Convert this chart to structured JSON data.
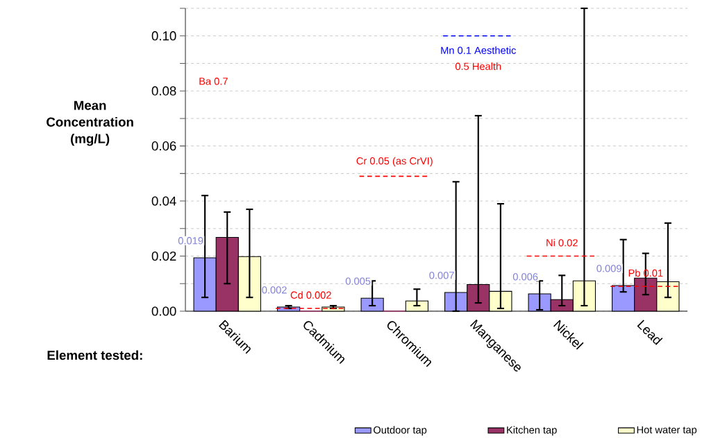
{
  "chart_data": {
    "type": "bar",
    "xlabel": "Element tested:",
    "ylabel": "Mean Concentration (mg/L)",
    "categories": [
      "Barium",
      "Cadmium",
      "Chromium",
      "Manganese",
      "Nickel",
      "Lead"
    ],
    "series": [
      {
        "name": "Outdoor tap",
        "color": "#9999ff",
        "values": [
          0.0194,
          0.0015,
          0.0047,
          0.0068,
          0.0063,
          0.0093
        ],
        "errors": [
          [
            0.005,
            0.042
          ],
          [
            0.001,
            0.002
          ],
          [
            0.002,
            0.011
          ],
          [
            0,
            0.047
          ],
          [
            0.0005,
            0.011
          ],
          [
            0.007,
            0.026
          ]
        ],
        "value_labels": [
          "0.019",
          "0.002",
          "0.005",
          "0.007",
          "0.006",
          "0.009"
        ]
      },
      {
        "name": "Kitchen tap",
        "color": "#993366",
        "values": [
          0.0268,
          0,
          0,
          0.0097,
          0.0042,
          0.012
        ],
        "errors": [
          [
            0.01,
            0.036
          ],
          null,
          null,
          [
            0.003,
            0.071
          ],
          [
            0.002,
            0.013
          ],
          [
            0.006,
            0.021
          ]
        ]
      },
      {
        "name": "Hot water tap",
        "color": "#ffffcc",
        "values": [
          0.0198,
          0.0015,
          0.0037,
          0.0072,
          0.011,
          0.0107
        ],
        "errors": [
          [
            0.005,
            0.037
          ],
          [
            0.001,
            0.002
          ],
          [
            0.002,
            0.008
          ],
          [
            0.001,
            0.039
          ],
          [
            0.002,
            0.11
          ],
          [
            0.005,
            0.032
          ]
        ]
      }
    ],
    "ylim": [
      0,
      0.11
    ],
    "yticks": [
      {
        "value": 0,
        "label": "0.00"
      },
      {
        "value": 0.01,
        "label": null
      },
      {
        "value": 0.02,
        "label": "0.02"
      },
      {
        "value": 0.03,
        "label": null
      },
      {
        "value": 0.04,
        "label": "0.04"
      },
      {
        "value": 0.05,
        "label": null
      },
      {
        "value": 0.06,
        "label": "0.06"
      },
      {
        "value": 0.07,
        "label": null
      },
      {
        "value": 0.08,
        "label": "0.08"
      },
      {
        "value": 0.09,
        "label": null
      },
      {
        "value": 0.1,
        "label": "0.10"
      },
      {
        "value": 0.11,
        "label": null
      }
    ],
    "grid": "y",
    "legend": "bottom",
    "ref_lines": [
      {
        "axis": "y",
        "value": 0.001,
        "label": "Cd 0.002",
        "color": "#ff0000",
        "line_style": "dashed"
      },
      {
        "axis": "y",
        "value": 0.049,
        "label": "Cr 0.05 (as CrVI)",
        "color": "#ff0000",
        "line_style": "dashed"
      },
      {
        "axis": "y",
        "value": 0.1,
        "label": "Mn 0.1 Aesthetic",
        "color": "#0000ff",
        "line_style": "dashed"
      },
      {
        "axis": "y",
        "value": 0.02,
        "label": "Ni 0.02",
        "color": "#ff0000",
        "line_style": "dashed"
      },
      {
        "axis": "y",
        "value": 0.009,
        "label": "Pb 0.01",
        "color": "#ff0000",
        "line_style": "dashed"
      }
    ],
    "annotations": [
      "Ba 0.7",
      "0.5 Health"
    ]
  }
}
